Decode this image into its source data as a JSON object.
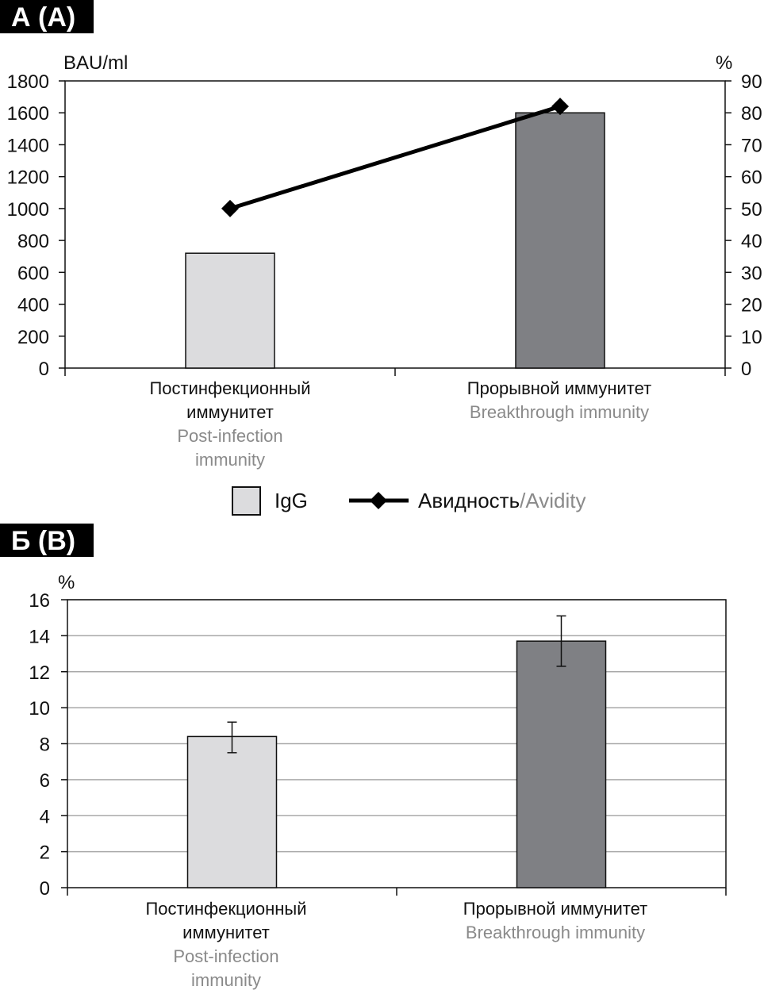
{
  "chart_data": [
    {
      "type": "bar+line",
      "panel_label": "А (A)",
      "y_left_label": "BAU/ml",
      "y_right_label": "%",
      "y_left_lim": [
        0,
        1800
      ],
      "y_left_ticks": [
        "0",
        "200",
        "400",
        "600",
        "800",
        "1000",
        "1200",
        "1400",
        "1600",
        "1800"
      ],
      "y_right_lim": [
        0,
        90
      ],
      "y_right_ticks": [
        "0",
        "10",
        "20",
        "30",
        "40",
        "50",
        "60",
        "70",
        "80",
        "90"
      ],
      "categories": [
        {
          "ru": [
            "Постинфекционный",
            "иммунитет"
          ],
          "en": [
            "Post-infection",
            "immunity"
          ]
        },
        {
          "ru": [
            "Прорывной иммунитет"
          ],
          "en": [
            "Breakthrough immunity"
          ]
        }
      ],
      "series": [
        {
          "name": "IgG",
          "kind": "bar",
          "axis": "left",
          "values": [
            720,
            1600
          ],
          "colors": [
            "#dcdcde",
            "#7f8084"
          ]
        },
        {
          "name": "Авидность/Avidity",
          "kind": "line",
          "axis": "right",
          "values": [
            50,
            82
          ],
          "color": "#000000"
        }
      ],
      "legend": {
        "bar_label": "IgG",
        "line_label_ru": "Авидность",
        "line_label_en": "/Avidity",
        "position": "bottom"
      }
    },
    {
      "type": "bar",
      "panel_label": "Б (B)",
      "y_label": "%",
      "ylim": [
        0,
        16
      ],
      "y_ticks": [
        "0",
        "2",
        "4",
        "6",
        "8",
        "10",
        "12",
        "14",
        "16"
      ],
      "grid": true,
      "categories": [
        {
          "ru": [
            "Постинфекционный",
            "иммунитет"
          ],
          "en": [
            "Post-infection",
            "immunity"
          ]
        },
        {
          "ru": [
            "Прорывной иммунитет"
          ],
          "en": [
            "Breakthrough immunity"
          ]
        }
      ],
      "values": [
        8.4,
        13.7
      ],
      "error_low": [
        7.5,
        12.3
      ],
      "error_high": [
        9.2,
        15.1
      ],
      "colors": [
        "#dcdcde",
        "#7f8084"
      ]
    }
  ]
}
